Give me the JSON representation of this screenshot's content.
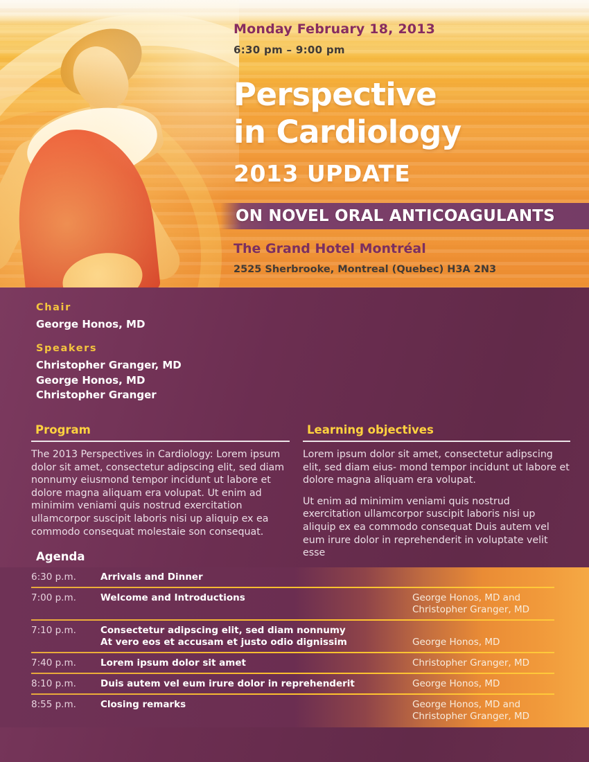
{
  "hero": {
    "date": "Monday February 18, 2013",
    "time": "6:30 pm – 9:00 pm",
    "title_line1": "Perspective",
    "title_line2": "in Cardiology",
    "title_line3": "2013 UPDATE",
    "banner": "ON NOVEL ORAL ANTICOAGULANTS",
    "venue_name": "The Grand Hotel Montréal",
    "venue_address": "2525 Sherbrooke, Montreal (Quebec) H3A 2N3"
  },
  "chair": {
    "heading": "Chair",
    "name": "George Honos, MD"
  },
  "speakers": {
    "heading": "Speakers",
    "names": [
      "Christopher Granger, MD",
      "George Honos, MD",
      "Christopher Granger"
    ]
  },
  "program": {
    "heading": "Program",
    "body": "The 2013 Perspectives in Cardiology: Lorem ipsum dolor sit amet, consectetur adipscing elit, sed diam nonnumy eiusmond tempor incidunt ut labore et dolore magna aliquam era volupat. Ut enim ad minimim veniami quis nostrud exercitation ullamcorpor suscipit laboris nisi up aliquip ex ea commodo consequat molestaie son consequat."
  },
  "learning_objectives": {
    "heading": "Learning objectives",
    "paragraphs": [
      "Lorem ipsum dolor sit amet, consectetur adipscing elit, sed diam eius- mond tempor incidunt ut labore et dolore magna aliquam era volupat.",
      "Ut enim ad minimim veniami quis nostrud exercitation ullamcorpor suscipit laboris nisi up aliquip ex ea commodo consequat Duis autem vel eum irure dolor in reprehenderit in voluptate velit esse"
    ]
  },
  "agenda": {
    "heading": "Agenda",
    "rows": [
      {
        "time": "6:30 p.m.",
        "title_lines": [
          "Arrivals and Dinner"
        ],
        "speaker_lines": []
      },
      {
        "time": "7:00 p.m.",
        "title_lines": [
          "Welcome and Introductions"
        ],
        "speaker_lines": [
          "George Honos, MD and",
          "Christopher Granger, MD"
        ]
      },
      {
        "time": "7:10 p.m.",
        "title_lines": [
          "Consectetur adipscing elit, sed diam nonnumy",
          "At vero eos et accusam et justo odio dignissim"
        ],
        "speaker_lines": [
          "George Honos, MD"
        ]
      },
      {
        "time": "7:40 p.m.",
        "title_lines": [
          "Lorem ipsum dolor sit amet"
        ],
        "speaker_lines": [
          "Christopher Granger, MD"
        ]
      },
      {
        "time": "8:10 p.m.",
        "title_lines": [
          "Duis autem vel eum irure dolor in reprehenderit"
        ],
        "speaker_lines": [
          "George Honos, MD"
        ]
      },
      {
        "time": "8:55 p.m.",
        "title_lines": [
          "Closing remarks"
        ],
        "speaker_lines": [
          "George Honos, MD and",
          "Christopher Granger, MD"
        ]
      }
    ]
  },
  "colors": {
    "accent_yellow": "#f4c43e",
    "heading_yellow": "#ffd23f",
    "brand_purple": "#7b2f60",
    "panel_purple": "#6c2e51",
    "hero_orange": "#f19838",
    "divider_yellow": "#ffc22c",
    "tank_red": "#d93423"
  }
}
